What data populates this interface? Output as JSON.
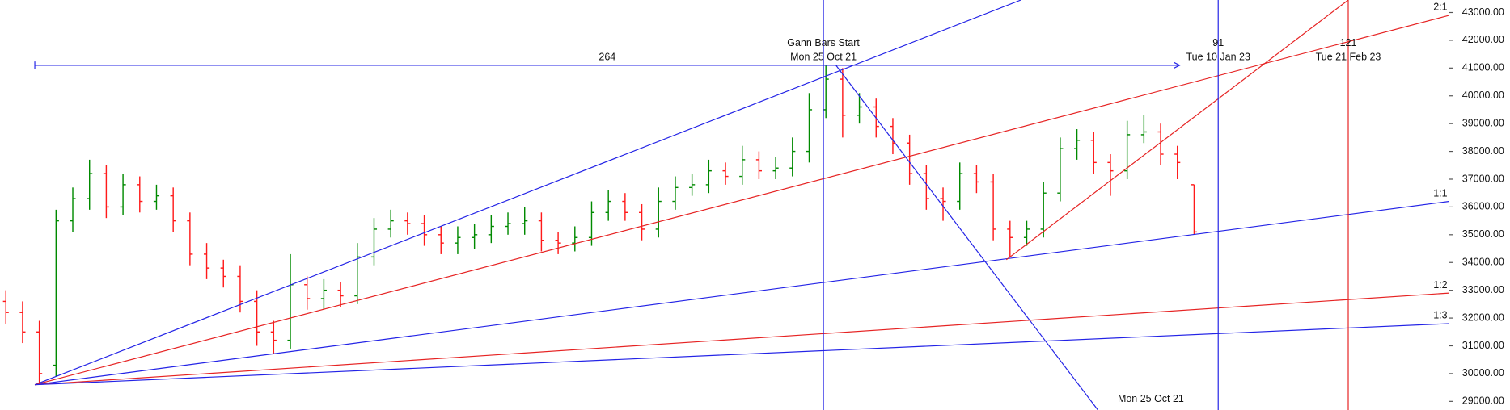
{
  "chart_data": {
    "type": "ohlc",
    "ylim": [
      28690,
      43450
    ],
    "xlim": [
      -0.35,
      86.25
    ],
    "yticks": [
      {
        "value": 29000,
        "label": "29000.00"
      },
      {
        "value": 30000,
        "label": "30000.00"
      },
      {
        "value": 31000,
        "label": "31000.00"
      },
      {
        "value": 32000,
        "label": "32000.00"
      },
      {
        "value": 33000,
        "label": "33000.00"
      },
      {
        "value": 34000,
        "label": "34000.00"
      },
      {
        "value": 35000,
        "label": "35000.00"
      },
      {
        "value": 36000,
        "label": "36000.00"
      },
      {
        "value": 37000,
        "label": "37000.00"
      },
      {
        "value": 38000,
        "label": "38000.00"
      },
      {
        "value": 39000,
        "label": "39000.00"
      },
      {
        "value": 40000,
        "label": "40000.00"
      },
      {
        "value": 41000,
        "label": "41000.00"
      },
      {
        "value": 42000,
        "label": "42000.00"
      },
      {
        "value": 43000,
        "label": "43000.00"
      }
    ],
    "up_color": "#008a00",
    "down_color": "#ff1a1a",
    "open": [
      32600,
      32200,
      31500,
      30300,
      35500,
      36300,
      37200,
      36000,
      36800,
      36200,
      36400,
      35500,
      34300,
      33800,
      33500,
      32600,
      31500,
      31200,
      33200,
      32700,
      33000,
      32800,
      34200,
      35200,
      35500,
      35400,
      35000,
      34700,
      34900,
      35000,
      35300,
      35400,
      35500,
      34800,
      34700,
      34900,
      35800,
      36200,
      35800,
      35200,
      36200,
      36700,
      36800,
      37300,
      37100,
      37700,
      37300,
      37400,
      38000,
      39500,
      40600,
      39300,
      39600,
      38900,
      38300,
      37200,
      36300,
      36200,
      37200,
      36900,
      35200,
      34900,
      35200,
      36500,
      38100,
      38400,
      37600,
      37300,
      38600,
      38700,
      37900,
      36800
    ],
    "high": [
      33000,
      32600,
      31900,
      35900,
      36700,
      37700,
      37500,
      37200,
      37100,
      36800,
      36700,
      35800,
      34700,
      34100,
      33900,
      33000,
      31900,
      34300,
      33500,
      33400,
      33300,
      34700,
      35600,
      35900,
      35800,
      35700,
      35300,
      35300,
      35400,
      35700,
      35800,
      36000,
      35800,
      35100,
      35300,
      36200,
      36600,
      36500,
      36100,
      36700,
      37100,
      37200,
      37700,
      37600,
      38200,
      38000,
      37800,
      38500,
      40100,
      41100,
      41000,
      40100,
      39900,
      39200,
      38600,
      37500,
      36700,
      37600,
      37500,
      37200,
      35500,
      35500,
      36900,
      38500,
      38800,
      38700,
      37900,
      39100,
      39300,
      39000,
      38200,
      36800
    ],
    "low": [
      31800,
      31100,
      29600,
      29900,
      35100,
      35900,
      35600,
      35700,
      35800,
      35900,
      35100,
      33900,
      33400,
      33100,
      32200,
      31000,
      30700,
      30900,
      32300,
      32300,
      32400,
      32500,
      33900,
      34900,
      35000,
      34600,
      34300,
      34300,
      34500,
      34700,
      35000,
      35000,
      34400,
      34300,
      34400,
      34600,
      35500,
      35500,
      34800,
      34900,
      35900,
      36400,
      36500,
      36800,
      36800,
      37000,
      37000,
      37100,
      37600,
      39200,
      38500,
      39000,
      38500,
      37900,
      36800,
      35900,
      35500,
      35900,
      36500,
      34800,
      34200,
      34600,
      34900,
      36200,
      37700,
      37200,
      36400,
      37000,
      38300,
      37500,
      37000,
      35000
    ],
    "close": [
      32200,
      31500,
      30000,
      35500,
      36300,
      37200,
      36000,
      36800,
      36200,
      36400,
      35500,
      34300,
      33800,
      33500,
      32600,
      31500,
      31200,
      33200,
      32700,
      33000,
      32800,
      34200,
      35200,
      35500,
      35400,
      35000,
      34700,
      34900,
      35000,
      35300,
      35400,
      35500,
      34800,
      34700,
      34900,
      35800,
      36200,
      35800,
      35200,
      36200,
      36700,
      36800,
      37300,
      37100,
      37700,
      37300,
      37400,
      38000,
      39500,
      40600,
      39300,
      39600,
      38900,
      38300,
      37200,
      36300,
      36200,
      37200,
      36900,
      35200,
      34900,
      35200,
      36500,
      38100,
      38400,
      37600,
      37300,
      38600,
      38700,
      37900,
      37600,
      35100
    ],
    "lines": [
      {
        "color": "#2323e6",
        "x": [
          1.73,
          60.65
        ],
        "y": [
          29600,
          43450
        ]
      },
      {
        "color": "#e62323",
        "x": [
          1.73,
          86.25
        ],
        "y": [
          29600,
          42900
        ],
        "label": "2:1"
      },
      {
        "color": "#2323e6",
        "x": [
          1.73,
          86.25
        ],
        "y": [
          29600,
          36200
        ],
        "label": "1:1"
      },
      {
        "color": "#e62323",
        "x": [
          1.73,
          86.25
        ],
        "y": [
          29600,
          32900
        ],
        "label": "1:2"
      },
      {
        "color": "#2323e6",
        "x": [
          1.73,
          86.25
        ],
        "y": [
          29600,
          31800
        ],
        "label": "1:3"
      },
      {
        "color": "#2323e6",
        "x": [
          49.6,
          65.25
        ],
        "y": [
          41100,
          28690
        ],
        "label": "Mon 25 Oct 21"
      },
      {
        "color": "#e62323",
        "x": [
          59.78,
          80.21
        ],
        "y": [
          34100,
          43450
        ]
      }
    ],
    "hline": {
      "color": "#2323e6",
      "x": [
        1.73,
        70.14
      ],
      "y": 41100,
      "label": "264"
    },
    "vlines": [
      {
        "color": "#2323e6",
        "x": 48.85,
        "label": "Gann Bars Start",
        "date": "Mon 25 Oct 21"
      },
      {
        "color": "#2323e6",
        "x": 72.44,
        "label": "91",
        "date": "Tue 10 Jan 23"
      },
      {
        "color": "#e62323",
        "x": 80.21,
        "label": "121",
        "date": "Tue 21 Feb 23"
      }
    ]
  }
}
